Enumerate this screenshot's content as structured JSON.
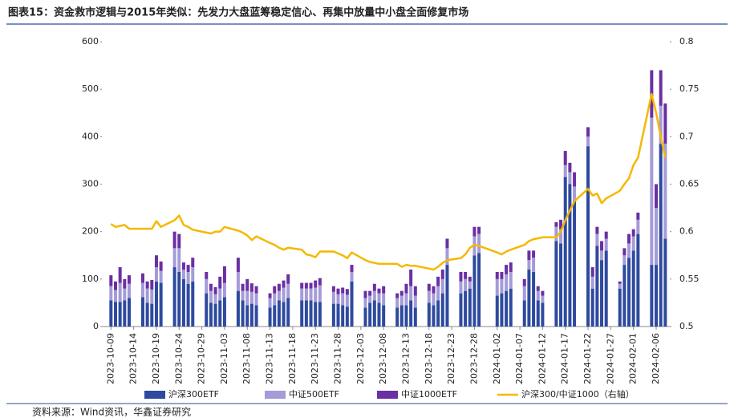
{
  "title": "图表15：资金救市逻辑与2015年类似：先发力大盘蓝筹稳定信心、再集中放量中小盘全面修复市场",
  "source": "资料来源：Wind资讯，华鑫证券研究",
  "chart_data": {
    "type": "bar",
    "x": [
      "2023-10-09",
      "2023-10-10",
      "2023-10-11",
      "2023-10-12",
      "2023-10-13",
      "2023-10-16",
      "2023-10-17",
      "2023-10-18",
      "2023-10-19",
      "2023-10-20",
      "2023-10-23",
      "2023-10-24",
      "2023-10-25",
      "2023-10-26",
      "2023-10-27",
      "2023-10-30",
      "2023-10-31",
      "2023-11-01",
      "2023-11-02",
      "2023-11-03",
      "2023-11-06",
      "2023-11-07",
      "2023-11-08",
      "2023-11-09",
      "2023-11-10",
      "2023-11-13",
      "2023-11-14",
      "2023-11-15",
      "2023-11-16",
      "2023-11-17",
      "2023-11-20",
      "2023-11-21",
      "2023-11-22",
      "2023-11-23",
      "2023-11-24",
      "2023-11-27",
      "2023-11-28",
      "2023-11-29",
      "2023-11-30",
      "2023-12-01",
      "2023-12-04",
      "2023-12-05",
      "2023-12-06",
      "2023-12-07",
      "2023-12-08",
      "2023-12-11",
      "2023-12-12",
      "2023-12-13",
      "2023-12-14",
      "2023-12-15",
      "2023-12-18",
      "2023-12-19",
      "2023-12-20",
      "2023-12-21",
      "2023-12-22",
      "2023-12-25",
      "2023-12-26",
      "2023-12-27",
      "2023-12-28",
      "2023-12-29",
      "2024-01-02",
      "2024-01-03",
      "2024-01-04",
      "2024-01-05",
      "2024-01-08",
      "2024-01-09",
      "2024-01-10",
      "2024-01-11",
      "2024-01-12",
      "2024-01-15",
      "2024-01-16",
      "2024-01-17",
      "2024-01-18",
      "2024-01-19",
      "2024-01-22",
      "2024-01-23",
      "2024-01-24",
      "2024-01-25",
      "2024-01-26",
      "2024-01-29",
      "2024-01-30",
      "2024-01-31",
      "2024-02-01",
      "2024-02-02",
      "2024-02-05",
      "2024-02-06",
      "2024-02-07",
      "2024-02-08"
    ],
    "xlim": [
      "2023-10-07",
      "2024-02-09"
    ],
    "xticks": [
      "2023-10-09",
      "2023-10-14",
      "2023-10-19",
      "2023-10-24",
      "2023-10-29",
      "2023-11-03",
      "2023-11-08",
      "2023-11-13",
      "2023-11-18",
      "2023-11-23",
      "2023-11-28",
      "2023-12-03",
      "2023-12-08",
      "2023-12-13",
      "2023-12-18",
      "2023-12-23",
      "2023-12-28",
      "2024-01-02",
      "2024-01-07",
      "2024-01-12",
      "2024-01-17",
      "2024-01-22",
      "2024-01-27",
      "2024-02-01",
      "2024-02-06"
    ],
    "ylim": [
      0,
      600
    ],
    "yticks": [
      0,
      100,
      200,
      300,
      400,
      500,
      600
    ],
    "y2lim": [
      0.5,
      0.8
    ],
    "y2ticks": [
      0.5,
      0.55,
      0.6,
      0.65,
      0.7,
      0.75,
      0.8
    ],
    "stacked": true,
    "series": [
      {
        "name": "沪深300ETF",
        "color": "#2e4a9e",
        "values": [
          55,
          52,
          52,
          55,
          60,
          62,
          50,
          48,
          95,
          92,
          125,
          115,
          100,
          90,
          95,
          70,
          50,
          48,
          55,
          62,
          75,
          55,
          45,
          48,
          45,
          40,
          45,
          55,
          52,
          60,
          55,
          55,
          55,
          52,
          52,
          48,
          48,
          45,
          42,
          95,
          40,
          50,
          55,
          50,
          45,
          40,
          45,
          45,
          55,
          40,
          50,
          45,
          55,
          70,
          130,
          70,
          75,
          80,
          150,
          155,
          65,
          70,
          75,
          80,
          55,
          120,
          115,
          55,
          50,
          180,
          175,
          315,
          300,
          265,
          380,
          80,
          170,
          140,
          160,
          80,
          130,
          145,
          160,
          195,
          130,
          130,
          385,
          185
        ]
      },
      {
        "name": "中证500ETF",
        "color": "#a49bd8",
        "values": [
          30,
          25,
          40,
          25,
          30,
          30,
          30,
          30,
          30,
          25,
          40,
          50,
          20,
          25,
          30,
          30,
          25,
          20,
          25,
          30,
          40,
          20,
          30,
          25,
          25,
          20,
          25,
          20,
          30,
          30,
          25,
          25,
          25,
          30,
          35,
          25,
          20,
          25,
          25,
          20,
          20,
          15,
          20,
          20,
          25,
          20,
          20,
          25,
          30,
          25,
          25,
          25,
          30,
          30,
          35,
          25,
          25,
          15,
          40,
          40,
          35,
          30,
          35,
          35,
          30,
          20,
          30,
          20,
          15,
          30,
          30,
          25,
          25,
          30,
          20,
          25,
          25,
          20,
          25,
          10,
          20,
          30,
          30,
          30,
          310,
          120,
          80,
          200
        ]
      },
      {
        "name": "中证1000ETF",
        "color": "#6b2fa3",
        "values": [
          23,
          18,
          33,
          20,
          18,
          20,
          15,
          20,
          25,
          20,
          35,
          30,
          15,
          15,
          20,
          15,
          15,
          15,
          25,
          35,
          30,
          15,
          25,
          18,
          15,
          10,
          15,
          15,
          15,
          20,
          12,
          12,
          12,
          15,
          15,
          12,
          12,
          12,
          12,
          15,
          15,
          10,
          15,
          10,
          15,
          10,
          10,
          20,
          35,
          20,
          15,
          15,
          20,
          20,
          20,
          20,
          15,
          10,
          20,
          15,
          15,
          15,
          20,
          20,
          15,
          20,
          15,
          10,
          10,
          10,
          20,
          30,
          20,
          30,
          20,
          20,
          15,
          20,
          15,
          5,
          15,
          20,
          15,
          15,
          100,
          50,
          75,
          85
        ]
      },
      {
        "name": "沪深300/中证1000（右轴）",
        "type": "line",
        "axis": "y2",
        "color": "#f5b800",
        "values": [
          0.608,
          0.605,
          0.606,
          0.607,
          0.603,
          0.603,
          0.603,
          0.603,
          0.611,
          0.605,
          0.612,
          0.617,
          0.607,
          0.605,
          0.602,
          0.599,
          0.598,
          0.6,
          0.6,
          0.605,
          0.601,
          0.599,
          0.596,
          0.591,
          0.595,
          0.588,
          0.586,
          0.583,
          0.581,
          0.583,
          0.581,
          0.576,
          0.575,
          0.573,
          0.579,
          0.579,
          0.577,
          0.575,
          0.572,
          0.578,
          0.57,
          0.568,
          0.567,
          0.566,
          0.566,
          0.566,
          0.563,
          0.565,
          0.564,
          0.564,
          0.561,
          0.56,
          0.563,
          0.567,
          0.57,
          0.572,
          0.576,
          0.583,
          0.586,
          0.585,
          0.578,
          0.576,
          0.579,
          0.581,
          0.586,
          0.59,
          0.592,
          0.593,
          0.594,
          0.594,
          0.6,
          0.612,
          0.622,
          0.632,
          0.645,
          0.638,
          0.64,
          0.63,
          0.635,
          0.643,
          0.65,
          0.656,
          0.67,
          0.678,
          0.745,
          0.725,
          0.7,
          0.678
        ]
      }
    ]
  }
}
